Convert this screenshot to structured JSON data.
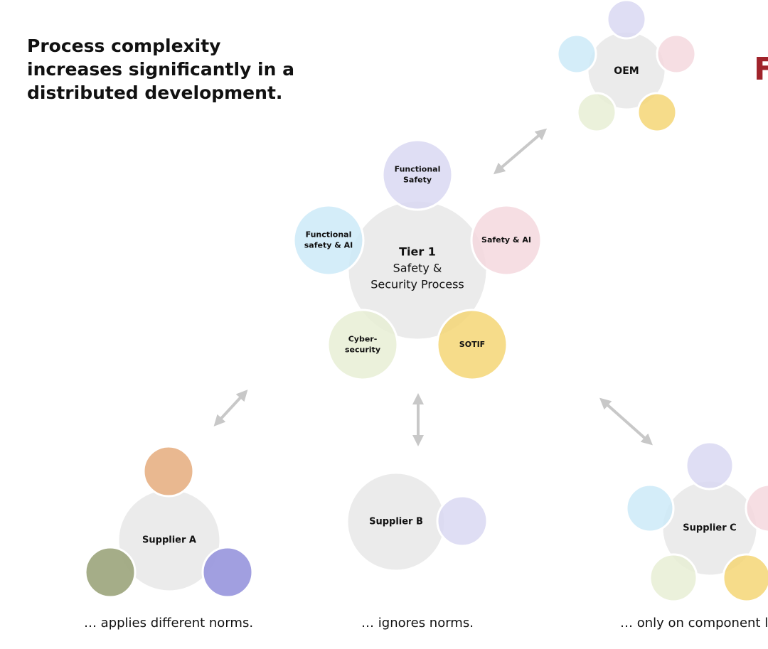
{
  "header": {
    "title_lines": [
      "Process complexity",
      "increases significantly in a",
      "distributed development."
    ],
    "logo_fragment": "F"
  },
  "nodes": [
    {
      "label_lines": [
        "OEM"
      ],
      "satellites": []
    },
    {
      "label_lines": [
        "Tier 1",
        "Safety &",
        "Security Process"
      ],
      "satellites": [
        {
          "label_lines": [
            "Functional",
            "Safety"
          ]
        },
        {
          "label_lines": [
            "Functional",
            "safety & AI"
          ]
        },
        {
          "label_lines": [
            "Safety & AI"
          ]
        },
        {
          "label_lines": [
            "Cyber-",
            "security"
          ]
        },
        {
          "label_lines": [
            "SOTIF"
          ]
        }
      ]
    },
    {
      "label_lines": [
        "Supplier A"
      ],
      "caption": "… applies different norms."
    },
    {
      "label_lines": [
        "Supplier B"
      ],
      "caption": "… ignores norms."
    },
    {
      "label_lines": [
        "Supplier C"
      ],
      "caption": "… only on component l"
    }
  ]
}
